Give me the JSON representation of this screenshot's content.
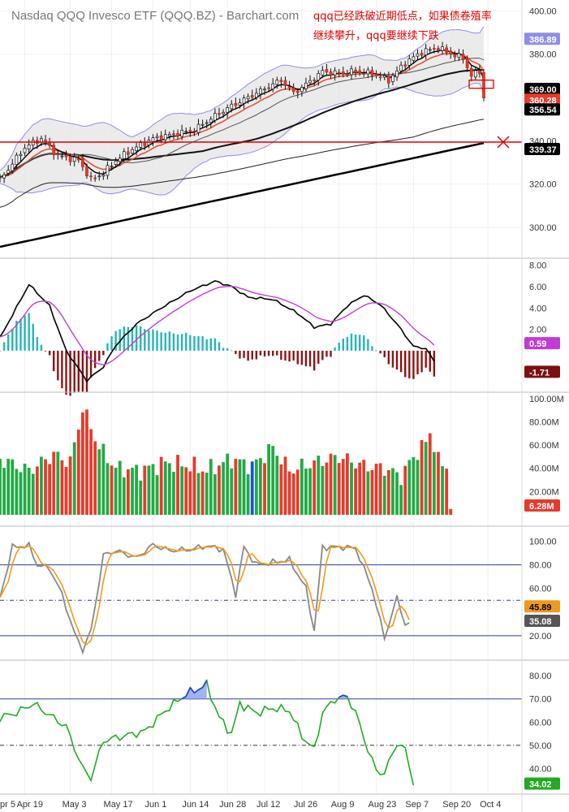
{
  "chart_data": {
    "type": "candlestick",
    "title": "Nasdaq QQQ Invesco ETF (QQQ.BZ) - Barchart.com",
    "annotation": "qqq已经跌破近期低点，如果债卷殖率继续攀升，qqq要继续下跌",
    "annotation_lines": [
      "qqq已经跌破近期低点，如果债卷殖率",
      "继续攀升，qqq要继续下跌"
    ],
    "x_tick_labels": [
      "pr 5",
      "Apr 19",
      "May 3",
      "May 17",
      "Jun 1",
      "Jun 14",
      "Jun 28",
      "Jul 12",
      "Jul 26",
      "Aug 9",
      "Aug 23",
      "Sep 7",
      "Sep 20",
      "Oct 4"
    ],
    "price_panel": {
      "y_ticks": [
        "400.00",
        "380.00",
        "340.00",
        "320.00",
        "300.00"
      ],
      "ylim": [
        288,
        402
      ],
      "horizontal_line": 339.37,
      "badges": [
        {
          "label": "386.89",
          "value": 386.89,
          "color": "#8e8ee6",
          "text_color": "#ffffff"
        },
        {
          "label": "369.00",
          "value": 369.0,
          "color": "#000000",
          "text_color": "#ffffff"
        },
        {
          "label": "360.28",
          "value": 360.28,
          "color": "#e53b2c",
          "text_color": "#ffffff"
        },
        {
          "label": "356.54",
          "value": 356.54,
          "color": "#000000",
          "text_color": "#ffffff"
        },
        {
          "label": "339.37",
          "value": 339.37,
          "color": "#000000",
          "text_color": "#ffffff"
        }
      ]
    },
    "macd_panel": {
      "y_ticks": [
        "8.00",
        "6.00",
        "4.00",
        "2.00"
      ],
      "ylim": [
        -3.5,
        8.5
      ],
      "badges": [
        {
          "label": "0.59",
          "value": 0.59,
          "color": "#c23bd4",
          "text_color": "#ffffff"
        },
        {
          "label": "-1.71",
          "value": -1.71,
          "color": "#7b1010",
          "text_color": "#ffffff"
        }
      ]
    },
    "volume_panel": {
      "y_ticks": [
        "100.00M",
        "80.00M",
        "60.00M",
        "40.00M",
        "20.00M"
      ],
      "ylim": [
        0,
        102
      ],
      "badges": [
        {
          "label": "6.28M",
          "value": 6.28,
          "color": "#e53b2c",
          "text_color": "#ffffff"
        }
      ]
    },
    "stochastic_panel": {
      "y_ticks": [
        "100.00",
        "80.00",
        "60.00",
        "20.00"
      ],
      "ylim": [
        0,
        110
      ],
      "levels": [
        80,
        50,
        20
      ],
      "badges": [
        {
          "label": "45.89",
          "value": 45.89,
          "color": "#f09a1a",
          "text_color": "#000000"
        },
        {
          "label": "35.08",
          "value": 35.08,
          "color": "#555555",
          "text_color": "#ffffff"
        }
      ]
    },
    "rsi_panel": {
      "y_ticks": [
        "80.00",
        "70.00",
        "60.00",
        "50.00",
        "40.00"
      ],
      "ylim": [
        30,
        86
      ],
      "levels": [
        70,
        50
      ],
      "badges": [
        {
          "label": "34.02",
          "value": 34.02,
          "color": "#22aa22",
          "text_color": "#ffffff"
        }
      ]
    },
    "close_anchors": [
      [
        0,
        322
      ],
      [
        6,
        337
      ],
      [
        10,
        341
      ],
      [
        14,
        333
      ],
      [
        19,
        331
      ],
      [
        22,
        322
      ],
      [
        25,
        325
      ],
      [
        28,
        331
      ],
      [
        32,
        336
      ],
      [
        37,
        341
      ],
      [
        42,
        343
      ],
      [
        47,
        345
      ],
      [
        50,
        349
      ],
      [
        55,
        355
      ],
      [
        60,
        360
      ],
      [
        64,
        364
      ],
      [
        68,
        368
      ],
      [
        71,
        362
      ],
      [
        74,
        366
      ],
      [
        78,
        372
      ],
      [
        82,
        371
      ],
      [
        86,
        372
      ],
      [
        90,
        371
      ],
      [
        94,
        368
      ],
      [
        98,
        376
      ],
      [
        102,
        381
      ],
      [
        106,
        383
      ],
      [
        108,
        381
      ],
      [
        112,
        378
      ],
      [
        114,
        370
      ],
      [
        116,
        372
      ],
      [
        117,
        360
      ]
    ],
    "macd_anchors": [
      [
        0,
        1.2
      ],
      [
        7,
        6.2
      ],
      [
        12,
        4.2
      ],
      [
        16,
        0.0
      ],
      [
        21,
        -2.8
      ],
      [
        25,
        -1.5
      ],
      [
        28,
        0.5
      ],
      [
        33,
        2.5
      ],
      [
        39,
        4.0
      ],
      [
        46,
        5.6
      ],
      [
        52,
        6.5
      ],
      [
        56,
        6.0
      ],
      [
        60,
        5.0
      ],
      [
        66,
        4.8
      ],
      [
        72,
        3.5
      ],
      [
        76,
        2.2
      ],
      [
        80,
        2.5
      ],
      [
        84,
        4.2
      ],
      [
        88,
        5.2
      ],
      [
        92,
        4.3
      ],
      [
        96,
        2.5
      ],
      [
        100,
        0.4
      ],
      [
        103,
        0.2
      ],
      [
        105,
        -1.0
      ]
    ],
    "vol_anchors": [
      [
        0,
        48
      ],
      [
        7,
        38
      ],
      [
        13,
        52
      ],
      [
        17,
        45
      ],
      [
        20,
        92
      ],
      [
        24,
        58
      ],
      [
        28,
        40
      ],
      [
        34,
        38
      ],
      [
        40,
        45
      ],
      [
        46,
        42
      ],
      [
        50,
        38
      ],
      [
        56,
        48
      ],
      [
        61,
        42
      ],
      [
        66,
        58
      ],
      [
        70,
        38
      ],
      [
        76,
        45
      ],
      [
        82,
        50
      ],
      [
        88,
        42
      ],
      [
        93,
        40
      ],
      [
        97,
        33
      ],
      [
        100,
        50
      ],
      [
        103,
        62
      ],
      [
        104,
        72
      ],
      [
        106,
        46
      ],
      [
        108,
        42
      ],
      [
        109,
        6
      ]
    ],
    "stoch_anchors": [
      [
        0,
        52
      ],
      [
        3,
        95
      ],
      [
        7,
        96
      ],
      [
        9,
        80
      ],
      [
        12,
        77
      ],
      [
        15,
        55
      ],
      [
        18,
        22
      ],
      [
        20,
        8
      ],
      [
        22,
        24
      ],
      [
        25,
        88
      ],
      [
        28,
        92
      ],
      [
        33,
        86
      ],
      [
        37,
        97
      ],
      [
        41,
        92
      ],
      [
        46,
        93
      ],
      [
        50,
        96
      ],
      [
        54,
        93
      ],
      [
        57,
        55
      ],
      [
        59,
        95
      ],
      [
        62,
        80
      ],
      [
        66,
        82
      ],
      [
        70,
        84
      ],
      [
        72,
        72
      ],
      [
        74,
        60
      ],
      [
        76,
        24
      ],
      [
        78,
        95
      ],
      [
        83,
        95
      ],
      [
        86,
        94
      ],
      [
        90,
        60
      ],
      [
        93,
        18
      ],
      [
        96,
        52
      ],
      [
        98,
        30
      ]
    ],
    "rsi_anchors": [
      [
        0,
        62
      ],
      [
        4,
        64
      ],
      [
        8,
        68
      ],
      [
        12,
        63
      ],
      [
        16,
        58
      ],
      [
        20,
        40
      ],
      [
        22,
        36
      ],
      [
        25,
        52
      ],
      [
        30,
        54
      ],
      [
        35,
        56
      ],
      [
        40,
        65
      ],
      [
        45,
        72
      ],
      [
        50,
        76
      ],
      [
        53,
        62
      ],
      [
        56,
        55
      ],
      [
        58,
        68
      ],
      [
        62,
        64
      ],
      [
        66,
        66
      ],
      [
        70,
        65
      ],
      [
        73,
        54
      ],
      [
        76,
        48
      ],
      [
        78,
        64
      ],
      [
        81,
        70
      ],
      [
        84,
        71
      ],
      [
        86,
        64
      ],
      [
        89,
        48
      ],
      [
        91,
        39
      ],
      [
        93,
        38
      ],
      [
        96,
        51
      ],
      [
        98,
        48
      ],
      [
        100,
        34
      ]
    ]
  }
}
